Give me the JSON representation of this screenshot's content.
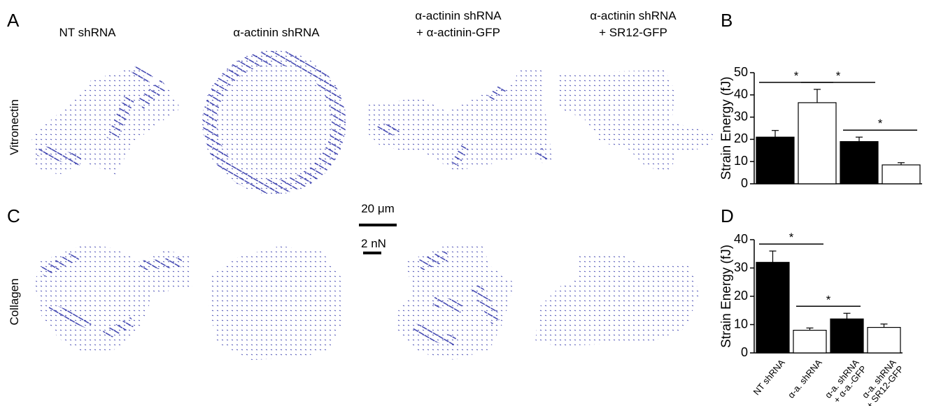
{
  "panel_labels": [
    "A",
    "B",
    "C",
    "D"
  ],
  "column_titles": [
    [
      "NT shRNA"
    ],
    [
      "α-actinin shRNA"
    ],
    [
      "α-actinin shRNA",
      "+ α-actinin-GFP"
    ],
    [
      "α-actinin shRNA",
      "+ SR12-GFP"
    ]
  ],
  "row_labels": [
    "Vitronectin",
    "Collagen"
  ],
  "scale_bars": [
    "20 μm",
    "2 nN"
  ],
  "chart_data": [
    {
      "type": "bar",
      "ylabel": "Strain Energy (fJ)",
      "values": [
        21,
        36.5,
        19,
        8.5
      ],
      "errors": [
        3,
        6,
        2,
        1
      ],
      "colors": [
        "#000000",
        "#ffffff",
        "#000000",
        "#ffffff"
      ],
      "ylim": [
        0,
        50
      ],
      "yticks": [
        0,
        10,
        20,
        30,
        40,
        50
      ],
      "annotations": [
        "*",
        "*",
        "*"
      ]
    },
    {
      "type": "bar",
      "ylabel": "Strain Energy (fJ)",
      "categories": [
        [
          "NT shRNA"
        ],
        [
          "α-a. shRNA"
        ],
        [
          "α-a. shRNA",
          "+ α-a.-GFP"
        ],
        [
          "α-a. shRNA",
          "+ SR12-GFP"
        ]
      ],
      "values": [
        32,
        8,
        12,
        9
      ],
      "errors": [
        4,
        0.8,
        2,
        1.2
      ],
      "colors": [
        "#000000",
        "#ffffff",
        "#000000",
        "#ffffff"
      ],
      "ylim": [
        0,
        40
      ],
      "yticks": [
        0,
        10,
        20,
        30,
        40
      ],
      "annotations": [
        "*",
        "*"
      ]
    }
  ]
}
